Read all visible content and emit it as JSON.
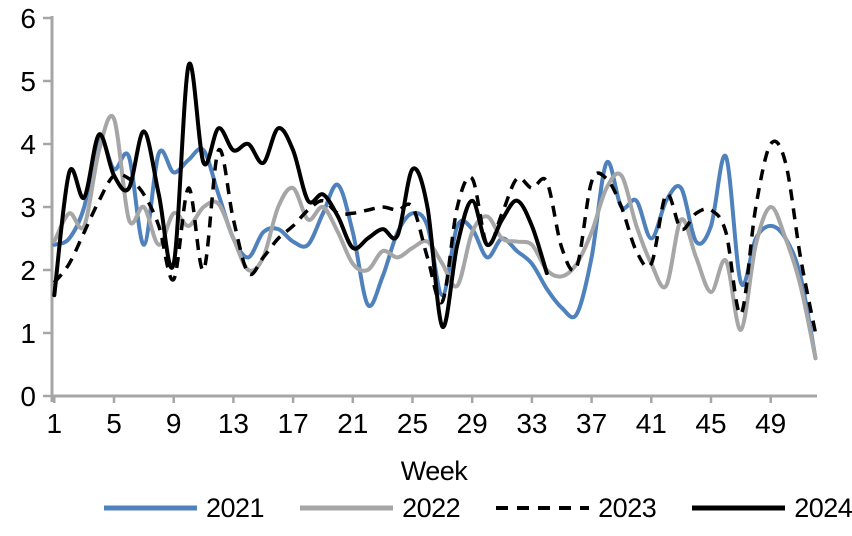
{
  "chart_data": {
    "type": "line",
    "title": "",
    "xlabel": "Week",
    "ylabel": "",
    "xlim": [
      1,
      52
    ],
    "ylim": [
      0,
      6
    ],
    "x_ticks": [
      1,
      5,
      9,
      13,
      17,
      21,
      25,
      29,
      33,
      37,
      41,
      45,
      49
    ],
    "y_ticks": [
      0,
      1,
      2,
      3,
      4,
      5,
      6
    ],
    "grid": false,
    "legend_position": "bottom",
    "axis_color": "#a6a6a6",
    "text_color": "#000000",
    "x_start_week": 1,
    "series": [
      {
        "name": "2021",
        "color": "#4f81bd",
        "style": "solid",
        "values": [
          2.4,
          2.5,
          3.0,
          4.1,
          3.6,
          3.8,
          2.4,
          3.85,
          3.55,
          3.75,
          3.9,
          3.2,
          2.5,
          2.2,
          2.6,
          2.65,
          2.45,
          2.4,
          2.9,
          3.35,
          2.6,
          1.45,
          1.9,
          2.6,
          2.9,
          2.7,
          1.6,
          2.7,
          2.65,
          2.2,
          2.5,
          2.3,
          2.1,
          1.7,
          1.4,
          1.3,
          2.2,
          3.7,
          3.0,
          3.1,
          2.5,
          3.1,
          3.3,
          2.45,
          2.7,
          3.8,
          1.8,
          2.5,
          2.7,
          2.5,
          1.9,
          0.6
        ]
      },
      {
        "name": "2022",
        "color": "#a6a6a6",
        "style": "solid",
        "values": [
          2.45,
          2.9,
          2.7,
          3.9,
          4.4,
          2.8,
          3.0,
          2.4,
          2.9,
          2.7,
          3.0,
          3.05,
          2.5,
          2.0,
          2.2,
          3.0,
          3.3,
          2.8,
          3.0,
          2.6,
          2.1,
          2.0,
          2.3,
          2.2,
          2.35,
          2.45,
          2.1,
          1.75,
          2.6,
          2.85,
          2.5,
          2.45,
          2.4,
          2.0,
          1.9,
          2.1,
          2.6,
          3.3,
          3.5,
          2.7,
          2.1,
          1.75,
          2.8,
          2.2,
          1.65,
          2.15,
          1.05,
          2.4,
          3.0,
          2.5,
          1.75,
          0.6
        ]
      },
      {
        "name": "2023",
        "color": "#000000",
        "style": "dashed",
        "values": [
          1.8,
          2.1,
          2.6,
          3.1,
          3.5,
          3.45,
          3.2,
          2.7,
          1.85,
          3.3,
          2.0,
          3.9,
          2.8,
          1.95,
          2.2,
          2.5,
          2.7,
          2.95,
          3.1,
          2.9,
          2.9,
          2.95,
          3.0,
          2.95,
          3.0,
          2.2,
          1.5,
          3.0,
          3.45,
          2.4,
          2.9,
          3.45,
          3.3,
          3.4,
          2.35,
          2.05,
          3.4,
          3.45,
          3.0,
          2.3,
          2.1,
          3.2,
          2.65,
          2.9,
          2.95,
          2.6,
          1.3,
          3.0,
          4.0,
          3.7,
          2.2,
          1.0
        ]
      },
      {
        "name": "2024",
        "color": "#000000",
        "style": "solid",
        "values": [
          1.6,
          3.55,
          3.15,
          4.15,
          3.5,
          3.3,
          4.2,
          3.2,
          2.1,
          5.25,
          3.7,
          4.25,
          3.9,
          4.0,
          3.7,
          4.25,
          3.9,
          3.1,
          3.2,
          2.85,
          2.35,
          2.5,
          2.65,
          2.55,
          3.6,
          3.0,
          1.1,
          2.4,
          3.1,
          2.4,
          2.8,
          3.1,
          2.7,
          1.95
        ]
      }
    ]
  }
}
